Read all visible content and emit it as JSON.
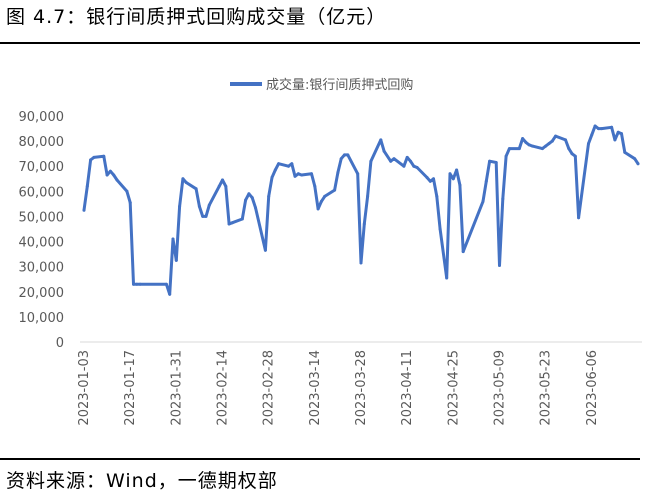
{
  "figure": {
    "title": "图 4.7：银行间质押式回购成交量（亿元）",
    "source": "资料来源：Wind，一德期权部"
  },
  "chart_data": {
    "type": "line",
    "title": "",
    "xlabel": "",
    "ylabel": "",
    "ylim": [
      0,
      90000
    ],
    "y_ticks": [
      "0",
      "10,000",
      "20,000",
      "30,000",
      "40,000",
      "50,000",
      "60,000",
      "70,000",
      "80,000",
      "90,000"
    ],
    "y_tick_values": [
      0,
      10000,
      20000,
      30000,
      40000,
      50000,
      60000,
      70000,
      80000,
      90000
    ],
    "x_ticks": [
      "2023-01-03",
      "2023-01-17",
      "2023-01-31",
      "2023-02-14",
      "2023-02-28",
      "2023-03-14",
      "2023-03-28",
      "2023-04-11",
      "2023-04-25",
      "2023-05-09",
      "2023-05-23",
      "2023-06-06"
    ],
    "x_range": [
      "2023-01-03",
      "2023-06-20"
    ],
    "grid": false,
    "legend_position": "top-center",
    "color": "#4472C4",
    "series": [
      {
        "name": "成交量:银行间质押式回购",
        "x": [
          "2023-01-03",
          "2023-01-04",
          "2023-01-05",
          "2023-01-06",
          "2023-01-09",
          "2023-01-10",
          "2023-01-11",
          "2023-01-12",
          "2023-01-13",
          "2023-01-16",
          "2023-01-17",
          "2023-01-18",
          "2023-01-19",
          "2023-01-20",
          "2023-01-28",
          "2023-01-29",
          "2023-01-30",
          "2023-01-31",
          "2023-02-01",
          "2023-02-02",
          "2023-02-03",
          "2023-02-06",
          "2023-02-07",
          "2023-02-08",
          "2023-02-09",
          "2023-02-10",
          "2023-02-13",
          "2023-02-14",
          "2023-02-15",
          "2023-02-16",
          "2023-02-17",
          "2023-02-20",
          "2023-02-21",
          "2023-02-22",
          "2023-02-23",
          "2023-02-24",
          "2023-02-27",
          "2023-02-28",
          "2023-03-01",
          "2023-03-02",
          "2023-03-03",
          "2023-03-06",
          "2023-03-07",
          "2023-03-08",
          "2023-03-09",
          "2023-03-10",
          "2023-03-13",
          "2023-03-14",
          "2023-03-15",
          "2023-03-16",
          "2023-03-17",
          "2023-03-20",
          "2023-03-21",
          "2023-03-22",
          "2023-03-23",
          "2023-03-24",
          "2023-03-27",
          "2023-03-28",
          "2023-03-29",
          "2023-03-30",
          "2023-03-31",
          "2023-04-03",
          "2023-04-04",
          "2023-04-06",
          "2023-04-07",
          "2023-04-10",
          "2023-04-11",
          "2023-04-12",
          "2023-04-13",
          "2023-04-14",
          "2023-04-17",
          "2023-04-18",
          "2023-04-19",
          "2023-04-20",
          "2023-04-21",
          "2023-04-23",
          "2023-04-24",
          "2023-04-25",
          "2023-04-26",
          "2023-04-27",
          "2023-04-28",
          "2023-05-04",
          "2023-05-05",
          "2023-05-06",
          "2023-05-08",
          "2023-05-09",
          "2023-05-10",
          "2023-05-11",
          "2023-05-12",
          "2023-05-15",
          "2023-05-16",
          "2023-05-17",
          "2023-05-18",
          "2023-05-19",
          "2023-05-22",
          "2023-05-23",
          "2023-05-24",
          "2023-05-25",
          "2023-05-26",
          "2023-05-29",
          "2023-05-30",
          "2023-05-31",
          "2023-06-01",
          "2023-06-02",
          "2023-06-05",
          "2023-06-06",
          "2023-06-07",
          "2023-06-08",
          "2023-06-09",
          "2023-06-12",
          "2023-06-13",
          "2023-06-14",
          "2023-06-15",
          "2023-06-16",
          "2023-06-19",
          "2023-06-20"
        ],
        "values": [
          52500,
          62000,
          72500,
          73500,
          74000,
          66500,
          68000,
          66500,
          64500,
          60000,
          55500,
          23000,
          23000,
          23000,
          23000,
          19000,
          41000,
          32500,
          54000,
          65000,
          63500,
          61000,
          54000,
          50000,
          50000,
          54500,
          62000,
          64500,
          62000,
          47000,
          47500,
          49000,
          56500,
          59000,
          57500,
          53500,
          36500,
          58000,
          65500,
          68500,
          71000,
          70000,
          71000,
          66000,
          67000,
          66500,
          67000,
          62000,
          53000,
          56000,
          58000,
          60500,
          67500,
          73000,
          74500,
          74500,
          67000,
          31500,
          47000,
          58000,
          72000,
          80500,
          76000,
          72000,
          73000,
          70000,
          73500,
          72000,
          70000,
          69500,
          65500,
          64000,
          65000,
          58000,
          45000,
          25500,
          67000,
          65000,
          68500,
          62500,
          36000,
          56000,
          64000,
          72000,
          71500,
          30500,
          57000,
          74000,
          77000,
          77000,
          81000,
          79500,
          78500,
          78000,
          77000,
          78000,
          79000,
          80000,
          82000,
          80500,
          77000,
          75000,
          74000,
          49500,
          79000,
          82500,
          86000,
          85000,
          85000,
          85500,
          80500,
          83500,
          83000,
          75500,
          73000,
          71000
        ]
      }
    ]
  }
}
